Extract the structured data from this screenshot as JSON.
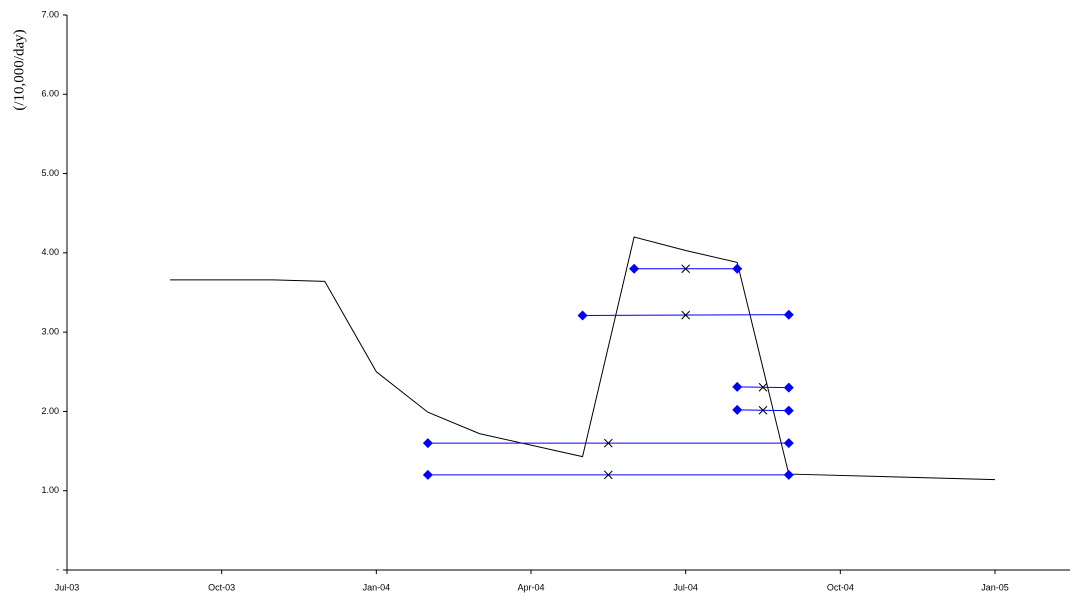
{
  "chart_data": {
    "type": "line",
    "y_label": "(/10,000/day)",
    "xlim": [
      "2003-07",
      "2005-01"
    ],
    "xticks": [
      {
        "value": "2003-07",
        "label": "Jul-03"
      },
      {
        "value": "2003-10",
        "label": "Oct-03"
      },
      {
        "value": "2004-01",
        "label": "Jan-04"
      },
      {
        "value": "2004-04",
        "label": "Apr-04"
      },
      {
        "value": "2004-07",
        "label": "Jul-04"
      },
      {
        "value": "2004-10",
        "label": "Oct-04"
      },
      {
        "value": "2005-01",
        "label": "Jan-05"
      }
    ],
    "ylim": [
      0,
      7
    ],
    "yticks": [
      {
        "value": 0,
        "label": "-"
      },
      {
        "value": 1,
        "label": "1.00"
      },
      {
        "value": 2,
        "label": "2.00"
      },
      {
        "value": 3,
        "label": "3.00"
      },
      {
        "value": 4,
        "label": "4.00"
      },
      {
        "value": 5,
        "label": "5.00"
      },
      {
        "value": 6,
        "label": "6.00"
      },
      {
        "value": 7,
        "label": "7.00"
      }
    ],
    "grid": false,
    "series": [
      {
        "color": "#000000",
        "marker": "none",
        "x": [
          "2003-09",
          "2003-11",
          "2003-12",
          "2004-01",
          "2004-02",
          "2004-03",
          "2004-05",
          "2004-06",
          "2004-07",
          "2004-08",
          "2004-09",
          "2005-01"
        ],
        "values": [
          3.66,
          3.66,
          3.64,
          2.5,
          1.99,
          1.72,
          1.43,
          4.2,
          4.03,
          3.88,
          1.21,
          1.14
        ]
      },
      {
        "color": "#0000ff",
        "marker": "diamond",
        "x": [
          "2004-06",
          "2004-08"
        ],
        "values": [
          3.8,
          3.8
        ]
      },
      {
        "color": "#0000ff",
        "marker": "diamond",
        "x": [
          "2004-05",
          "2004-09"
        ],
        "values": [
          3.21,
          3.22
        ]
      },
      {
        "color": "#0000ff",
        "marker": "diamond",
        "x": [
          "2004-08",
          "2004-09"
        ],
        "values": [
          2.31,
          2.3
        ]
      },
      {
        "color": "#0000ff",
        "marker": "diamond",
        "x": [
          "2004-08",
          "2004-09"
        ],
        "values": [
          2.02,
          2.01
        ]
      },
      {
        "color": "#0000ff",
        "marker": "diamond",
        "x": [
          "2004-02",
          "2004-09"
        ],
        "values": [
          1.6,
          1.6
        ]
      },
      {
        "color": "#0000ff",
        "marker": "diamond",
        "x": [
          "2004-02",
          "2004-09"
        ],
        "values": [
          1.2,
          1.2
        ]
      }
    ]
  }
}
